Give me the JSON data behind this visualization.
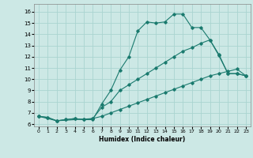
{
  "xlabel": "Humidex (Indice chaleur)",
  "bg_color": "#cce8e5",
  "grid_color": "#aad4d0",
  "line_color": "#1a7a6e",
  "xlim": [
    -0.5,
    23.5
  ],
  "ylim": [
    5.8,
    16.7
  ],
  "xticks": [
    0,
    1,
    2,
    3,
    4,
    5,
    6,
    7,
    8,
    9,
    10,
    11,
    12,
    13,
    14,
    15,
    16,
    17,
    18,
    19,
    20,
    21,
    22,
    23
  ],
  "yticks": [
    6,
    7,
    8,
    9,
    10,
    11,
    12,
    13,
    14,
    15,
    16
  ],
  "lines": [
    {
      "x": [
        0,
        1,
        2,
        3,
        4,
        5,
        6,
        7,
        8,
        9,
        10,
        11,
        12,
        13,
        14,
        15,
        16,
        17,
        18,
        19,
        20,
        21,
        22,
        23
      ],
      "y": [
        6.7,
        6.6,
        6.3,
        6.4,
        6.5,
        6.4,
        6.4,
        7.8,
        9.0,
        10.8,
        12.0,
        14.3,
        15.1,
        15.0,
        15.1,
        15.8,
        15.8,
        14.6,
        14.6,
        13.5,
        12.1,
        10.5,
        10.5,
        10.3
      ]
    },
    {
      "x": [
        0,
        2,
        6,
        7,
        8,
        9,
        10,
        11,
        12,
        13,
        14,
        15,
        16,
        17,
        18,
        19,
        20,
        21,
        22,
        23
      ],
      "y": [
        6.7,
        6.3,
        6.5,
        7.5,
        8.0,
        9.0,
        9.5,
        10.0,
        10.5,
        11.0,
        11.5,
        12.0,
        12.5,
        12.8,
        13.2,
        13.5,
        12.2,
        10.5,
        10.5,
        10.3
      ]
    },
    {
      "x": [
        0,
        1,
        2,
        3,
        4,
        5,
        6,
        7,
        8,
        9,
        10,
        11,
        12,
        13,
        14,
        15,
        16,
        17,
        18,
        19,
        20,
        21,
        22,
        23
      ],
      "y": [
        6.7,
        6.6,
        6.3,
        6.4,
        6.5,
        6.4,
        6.5,
        6.7,
        7.0,
        7.3,
        7.6,
        7.9,
        8.2,
        8.5,
        8.8,
        9.1,
        9.4,
        9.7,
        10.0,
        10.3,
        10.5,
        10.7,
        10.9,
        10.3
      ]
    }
  ]
}
